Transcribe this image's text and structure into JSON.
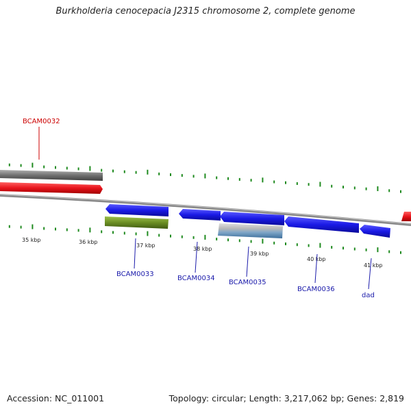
{
  "title": "Burkholderia cenocepacia J2315 chromosome 2, complete genome",
  "footer": {
    "accession": "Accession: NC_011001",
    "summary": "Topology: circular; Length: 3,217,062 bp; Genes: 2,819"
  },
  "colors": {
    "forward_gene": "#e8141c",
    "reverse_gene": "#1a1ae6",
    "rna": "#6b8e23",
    "ticks": "#1f8a1f",
    "backbone": "#888888",
    "label_forward": "#cc0000",
    "label_reverse": "#1a1aaa"
  },
  "scale_labels": [
    "35 kbp",
    "36 kbp",
    "37 kbp",
    "38 kbp",
    "39 kbp",
    "40 kbp",
    "41 kbp"
  ],
  "gene_labels": [
    {
      "text": "BCAM0032",
      "strand": "forward"
    },
    {
      "text": "BCAM0033",
      "strand": "reverse"
    },
    {
      "text": "BCAM0034",
      "strand": "reverse"
    },
    {
      "text": "BCAM0035",
      "strand": "reverse"
    },
    {
      "text": "BCAM0036",
      "strand": "reverse"
    },
    {
      "text": "dad",
      "strand": "reverse"
    }
  ]
}
